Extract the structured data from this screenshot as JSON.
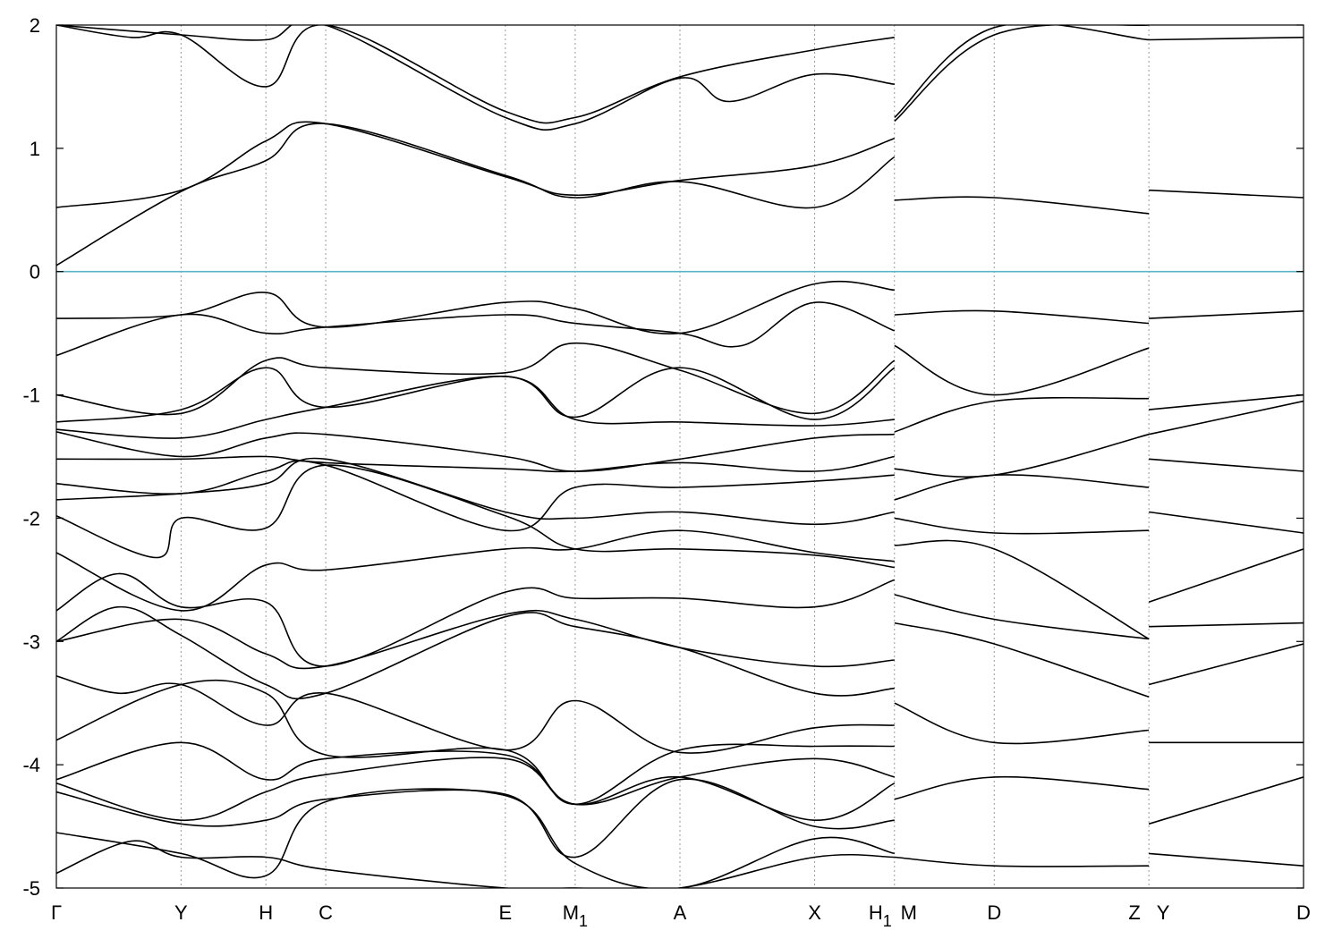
{
  "chart_data": {
    "type": "line",
    "title": "",
    "xlabel": "",
    "ylabel": "",
    "ylim": [
      -5,
      2
    ],
    "yticks": [
      "-5",
      "-4",
      "-3",
      "-2",
      "-1",
      "0",
      "1",
      "2"
    ],
    "grid": "vertical dashed lines at high-symmetry points",
    "fermi_level": {
      "y": 0,
      "color": "#5ab4c8"
    },
    "kpoints": [
      {
        "label": "Γ",
        "sub": "",
        "x": 0.0
      },
      {
        "label": "Y",
        "sub": "",
        "x": 1.0
      },
      {
        "label": "H",
        "sub": "",
        "x": 1.68
      },
      {
        "label": "C",
        "sub": "",
        "x": 2.16
      },
      {
        "label": "E",
        "sub": "",
        "x": 3.6
      },
      {
        "label": "M",
        "sub": "1",
        "x": 4.16
      },
      {
        "label": "A",
        "sub": "",
        "x": 5.0
      },
      {
        "label": "X",
        "sub": "",
        "x": 6.08
      },
      {
        "label": "H",
        "sub": "1",
        "x": 6.72
      },
      {
        "label": "M",
        "sub": "",
        "x": 6.72
      },
      {
        "label": "D",
        "sub": "",
        "x": 7.52
      },
      {
        "label": "Z",
        "sub": "",
        "x": 8.76
      },
      {
        "label": "Y",
        "sub": "",
        "x": 8.76
      },
      {
        "label": "D",
        "sub": "",
        "x": 10.0
      }
    ],
    "discontinuities": [
      6.72,
      8.76
    ],
    "xlim": [
      0,
      10.0
    ],
    "series": [
      {
        "segment": 1,
        "x": [
          0,
          1,
          1.68,
          2.16,
          3.6,
          4.16,
          5.0,
          6.08,
          6.72
        ],
        "y": [
          0.05,
          0.65,
          0.9,
          1.2,
          0.78,
          0.6,
          0.73,
          0.52,
          0.93
        ]
      },
      {
        "segment": 1,
        "x": [
          0,
          1,
          1.68,
          2.16,
          3.6,
          4.16,
          5.0,
          6.08,
          6.72
        ],
        "y": [
          0.52,
          0.66,
          1.06,
          1.2,
          0.77,
          0.62,
          0.74,
          0.86,
          1.08
        ]
      },
      {
        "segment": 1,
        "x": [
          0,
          0.6,
          1,
          1.68,
          2.16,
          3.6,
          4.16,
          5.0,
          6.08,
          6.72
        ],
        "y": [
          2.0,
          1.9,
          1.92,
          1.5,
          2.0,
          1.3,
          1.25,
          1.58,
          1.8,
          1.9
        ]
      },
      {
        "segment": 1,
        "x": [
          0,
          1,
          1.68,
          2.16,
          3.6,
          4.16,
          5.0,
          5.4,
          6.08,
          6.72
        ],
        "y": [
          2.0,
          1.92,
          1.88,
          2.0,
          1.25,
          1.2,
          1.57,
          1.38,
          1.6,
          1.52
        ]
      },
      {
        "segment": 1,
        "x": [
          0,
          1,
          1.68,
          2.16,
          3.6,
          4.16,
          5.0,
          6.08,
          6.72
        ],
        "y": [
          -0.38,
          -0.35,
          -0.17,
          -0.45,
          -0.25,
          -0.3,
          -0.5,
          -0.1,
          -0.15
        ]
      },
      {
        "segment": 1,
        "x": [
          0,
          1,
          1.68,
          2.16,
          3.6,
          4.16,
          5.0,
          5.5,
          6.08,
          6.72
        ],
        "y": [
          -0.68,
          -0.35,
          -0.5,
          -0.45,
          -0.35,
          -0.42,
          -0.5,
          -0.6,
          -0.25,
          -0.48
        ]
      },
      {
        "segment": 1,
        "x": [
          0,
          1,
          1.68,
          2.16,
          3.6,
          4.16,
          5.0,
          6.08,
          6.72
        ],
        "y": [
          -1.0,
          -1.15,
          -0.72,
          -0.78,
          -0.82,
          -0.58,
          -0.8,
          -1.15,
          -0.72
        ]
      },
      {
        "segment": 1,
        "x": [
          0,
          1,
          1.68,
          2.16,
          3.6,
          4.16,
          5.0,
          6.08,
          6.72
        ],
        "y": [
          -1.22,
          -1.12,
          -0.78,
          -1.1,
          -0.85,
          -1.18,
          -0.78,
          -1.2,
          -0.78
        ]
      },
      {
        "segment": 1,
        "x": [
          0,
          1,
          1.68,
          2.16,
          3.6,
          4.16,
          5.0,
          6.08,
          6.72
        ],
        "y": [
          -1.28,
          -1.35,
          -1.2,
          -1.1,
          -0.85,
          -1.2,
          -1.22,
          -1.25,
          -1.2
        ]
      },
      {
        "segment": 1,
        "x": [
          0,
          1,
          1.68,
          2.16,
          3.6,
          4.16,
          5.0,
          6.08,
          6.72
        ],
        "y": [
          -1.3,
          -1.5,
          -1.35,
          -1.32,
          -1.5,
          -1.62,
          -1.52,
          -1.35,
          -1.32
        ]
      },
      {
        "segment": 1,
        "x": [
          0,
          1,
          1.68,
          2.16,
          3.6,
          4.16,
          5.0,
          6.08,
          6.72
        ],
        "y": [
          -1.52,
          -1.52,
          -1.5,
          -1.55,
          -1.6,
          -1.62,
          -1.55,
          -1.62,
          -1.5
        ]
      },
      {
        "segment": 1,
        "x": [
          0,
          1,
          1.68,
          2.16,
          3.6,
          4.16,
          5.0,
          6.08,
          6.72
        ],
        "y": [
          -1.72,
          -1.8,
          -1.62,
          -1.57,
          -2.1,
          -1.75,
          -1.75,
          -1.7,
          -1.65
        ]
      },
      {
        "segment": 1,
        "x": [
          0,
          1,
          1.68,
          2.16,
          3.6,
          4.16,
          5.0,
          6.08,
          6.72
        ],
        "y": [
          -1.85,
          -1.8,
          -1.72,
          -1.52,
          -1.95,
          -2.0,
          -1.95,
          -2.05,
          -1.95
        ]
      },
      {
        "segment": 1,
        "x": [
          0,
          0.8,
          1,
          1.68,
          2.16,
          3.6,
          4.16,
          5.0,
          6.08,
          6.72
        ],
        "y": [
          -1.98,
          -2.32,
          -2.0,
          -2.08,
          -1.57,
          -1.98,
          -2.25,
          -2.25,
          -2.3,
          -2.4
        ]
      },
      {
        "segment": 1,
        "x": [
          0,
          1,
          1.68,
          2.16,
          3.6,
          4.16,
          5.0,
          6.08,
          6.72
        ],
        "y": [
          -2.28,
          -2.75,
          -2.38,
          -2.42,
          -2.25,
          -2.25,
          -2.1,
          -2.28,
          -2.35
        ]
      },
      {
        "segment": 1,
        "x": [
          0,
          0.5,
          1,
          1.68,
          2.16,
          3.6,
          4.16,
          5.0,
          6.08,
          6.72
        ],
        "y": [
          -2.75,
          -2.45,
          -2.72,
          -2.68,
          -3.2,
          -2.6,
          -2.65,
          -2.65,
          -2.72,
          -2.5
        ]
      },
      {
        "segment": 1,
        "x": [
          0,
          1,
          1.68,
          2.16,
          3.6,
          4.16,
          5.0,
          6.08,
          6.72
        ],
        "y": [
          -3.0,
          -2.82,
          -3.1,
          -3.2,
          -2.78,
          -2.82,
          -3.05,
          -3.2,
          -3.15
        ]
      },
      {
        "segment": 1,
        "x": [
          0,
          0.5,
          1,
          1.68,
          2.16,
          3.6,
          4.16,
          5.0,
          6.08,
          6.72
        ],
        "y": [
          -3.0,
          -2.72,
          -2.95,
          -3.35,
          -3.42,
          -2.8,
          -2.88,
          -3.05,
          -3.42,
          -3.38
        ]
      },
      {
        "segment": 1,
        "x": [
          0,
          0.5,
          1,
          1.68,
          2.16,
          3.6,
          4.16,
          5.0,
          6.08,
          6.72
        ],
        "y": [
          -3.28,
          -3.42,
          -3.35,
          -3.68,
          -3.42,
          -3.88,
          -3.48,
          -3.9,
          -3.7,
          -3.68
        ]
      },
      {
        "segment": 1,
        "x": [
          0,
          1,
          1.68,
          2.16,
          3.6,
          4.16,
          5.0,
          6.08,
          6.72
        ],
        "y": [
          -3.8,
          -3.35,
          -3.42,
          -3.92,
          -3.88,
          -4.32,
          -3.88,
          -3.85,
          -3.85
        ]
      },
      {
        "segment": 1,
        "x": [
          0,
          1,
          1.68,
          2.16,
          3.6,
          4.16,
          5.0,
          6.08,
          6.72
        ],
        "y": [
          -4.12,
          -3.82,
          -4.12,
          -3.95,
          -3.92,
          -4.32,
          -4.1,
          -3.95,
          -4.1
        ]
      },
      {
        "segment": 1,
        "x": [
          0,
          1,
          1.68,
          2.16,
          3.6,
          4.16,
          5.0,
          6.08,
          6.72
        ],
        "y": [
          -4.15,
          -4.45,
          -4.22,
          -4.08,
          -3.95,
          -4.32,
          -4.1,
          -4.45,
          -4.15
        ]
      },
      {
        "segment": 1,
        "x": [
          0,
          1,
          1.68,
          2.16,
          3.6,
          4.16,
          5.0,
          6.08,
          6.72
        ],
        "y": [
          -4.22,
          -4.48,
          -4.45,
          -4.28,
          -4.24,
          -4.75,
          -4.12,
          -4.5,
          -4.45
        ]
      },
      {
        "segment": 1,
        "x": [
          0,
          1,
          1.68,
          2.16,
          3.6,
          4.16,
          5.0,
          6.08,
          6.72
        ],
        "y": [
          -4.55,
          -4.72,
          -4.9,
          -4.3,
          -4.25,
          -4.8,
          -5.0,
          -4.6,
          -4.72
        ]
      },
      {
        "segment": 1,
        "x": [
          0,
          0.6,
          1,
          1.68,
          2.16,
          3.6,
          4.16,
          5.0,
          6.08,
          6.72
        ],
        "y": [
          -4.88,
          -4.62,
          -4.75,
          -4.75,
          -4.85,
          -5.0,
          -5.0,
          -5.0,
          -4.75,
          -4.75
        ]
      },
      {
        "segment": 2,
        "x": [
          6.72,
          7.52,
          8.76
        ],
        "y": [
          1.22,
          1.92,
          2.0
        ]
      },
      {
        "segment": 2,
        "x": [
          6.72,
          7.52,
          8.76
        ],
        "y": [
          1.25,
          1.98,
          1.88
        ]
      },
      {
        "segment": 2,
        "x": [
          6.72,
          7.52,
          8.76
        ],
        "y": [
          0.58,
          0.6,
          0.47
        ]
      },
      {
        "segment": 2,
        "x": [
          6.72,
          7.52,
          8.76
        ],
        "y": [
          -0.35,
          -0.32,
          -0.42
        ]
      },
      {
        "segment": 2,
        "x": [
          6.72,
          7.52,
          8.76
        ],
        "y": [
          -0.6,
          -1.0,
          -0.62
        ]
      },
      {
        "segment": 2,
        "x": [
          6.72,
          7.52,
          8.76
        ],
        "y": [
          -1.3,
          -1.05,
          -1.03
        ]
      },
      {
        "segment": 2,
        "x": [
          6.72,
          7.52,
          8.76
        ],
        "y": [
          -1.6,
          -1.65,
          -1.32
        ]
      },
      {
        "segment": 2,
        "x": [
          6.72,
          7.52,
          8.76
        ],
        "y": [
          -1.85,
          -1.65,
          -1.75
        ]
      },
      {
        "segment": 2,
        "x": [
          6.72,
          7.52,
          8.76
        ],
        "y": [
          -2.0,
          -2.12,
          -2.1
        ]
      },
      {
        "segment": 2,
        "x": [
          6.72,
          7.52,
          8.76
        ],
        "y": [
          -2.22,
          -2.25,
          -2.98
        ]
      },
      {
        "segment": 2,
        "x": [
          6.72,
          7.52,
          8.76
        ],
        "y": [
          -2.62,
          -2.82,
          -2.98
        ]
      },
      {
        "segment": 2,
        "x": [
          6.72,
          7.52,
          8.76
        ],
        "y": [
          -2.85,
          -3.02,
          -3.45
        ]
      },
      {
        "segment": 2,
        "x": [
          6.72,
          7.52,
          8.76
        ],
        "y": [
          -3.5,
          -3.82,
          -3.72
        ]
      },
      {
        "segment": 2,
        "x": [
          6.72,
          7.52,
          8.76
        ],
        "y": [
          -4.28,
          -4.1,
          -4.2
        ]
      },
      {
        "segment": 2,
        "x": [
          6.72,
          7.52,
          8.76
        ],
        "y": [
          -4.75,
          -4.82,
          -4.82
        ]
      },
      {
        "segment": 3,
        "x": [
          8.76,
          10.0
        ],
        "y": [
          1.88,
          1.9
        ]
      },
      {
        "segment": 3,
        "x": [
          8.76,
          10.0
        ],
        "y": [
          0.66,
          0.6
        ]
      },
      {
        "segment": 3,
        "x": [
          8.76,
          10.0
        ],
        "y": [
          -0.38,
          -0.32
        ]
      },
      {
        "segment": 3,
        "x": [
          8.76,
          10.0
        ],
        "y": [
          -1.12,
          -1.0
        ]
      },
      {
        "segment": 3,
        "x": [
          8.76,
          10.0
        ],
        "y": [
          -1.32,
          -1.05
        ]
      },
      {
        "segment": 3,
        "x": [
          8.76,
          10.0
        ],
        "y": [
          -1.52,
          -1.62
        ]
      },
      {
        "segment": 3,
        "x": [
          8.76,
          10.0
        ],
        "y": [
          -1.95,
          -2.12
        ]
      },
      {
        "segment": 3,
        "x": [
          8.76,
          10.0
        ],
        "y": [
          -2.68,
          -2.25
        ]
      },
      {
        "segment": 3,
        "x": [
          8.76,
          10.0
        ],
        "y": [
          -2.88,
          -2.85
        ]
      },
      {
        "segment": 3,
        "x": [
          8.76,
          10.0
        ],
        "y": [
          -3.35,
          -3.02
        ]
      },
      {
        "segment": 3,
        "x": [
          8.76,
          10.0
        ],
        "y": [
          -3.82,
          -3.82
        ]
      },
      {
        "segment": 3,
        "x": [
          8.76,
          10.0
        ],
        "y": [
          -4.48,
          -4.1
        ]
      },
      {
        "segment": 3,
        "x": [
          8.76,
          10.0
        ],
        "y": [
          -4.72,
          -4.82
        ]
      }
    ]
  }
}
